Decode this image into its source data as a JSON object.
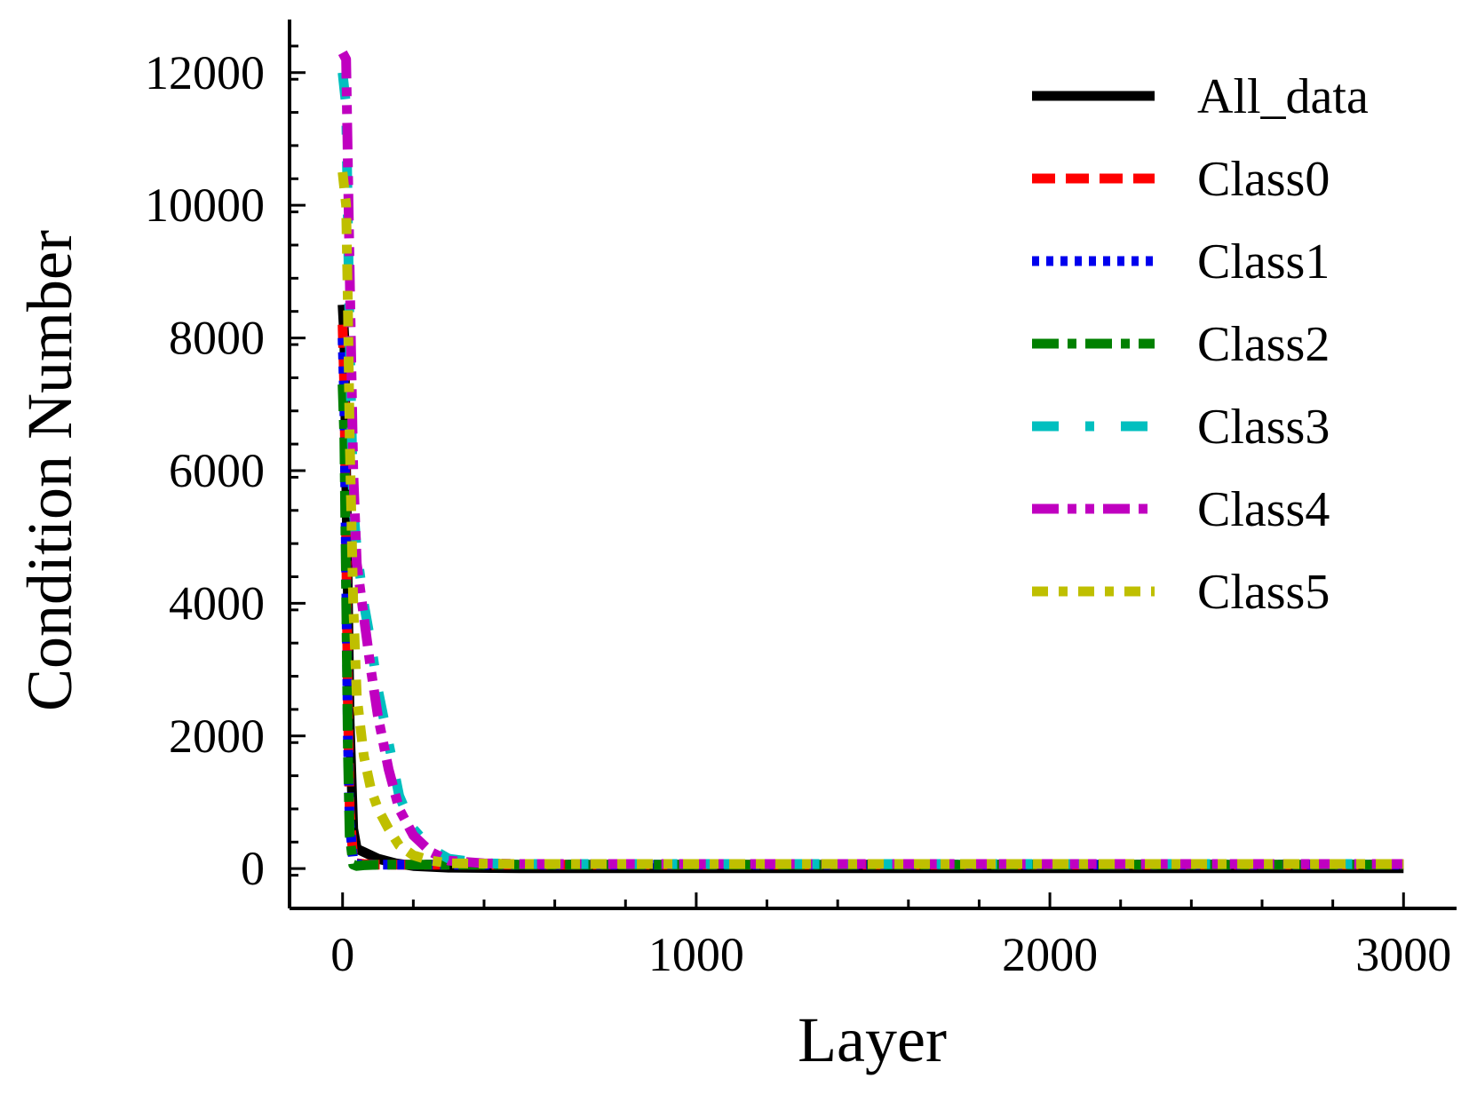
{
  "chart_data": {
    "type": "line",
    "title": "",
    "xlabel": "Layer",
    "ylabel": "Condition Number",
    "xlim": [
      -150,
      3150
    ],
    "ylim": [
      -600,
      12800
    ],
    "xticks": [
      0,
      1000,
      2000,
      3000
    ],
    "xtick_labels": [
      "0",
      "1000",
      "2000",
      "3000"
    ],
    "yticks": [
      0,
      2000,
      4000,
      6000,
      8000,
      10000,
      12000
    ],
    "ytick_labels": [
      "0",
      "2000",
      "4000",
      "6000",
      "8000",
      "10000",
      "12000"
    ],
    "grid": false,
    "legend_position": "top-right",
    "series": [
      {
        "name": "All_data",
        "color": "#000000",
        "dash": "solid",
        "x": [
          0,
          5,
          10,
          20,
          30,
          40,
          60,
          80,
          100,
          150,
          200,
          300,
          500,
          1000,
          2000,
          3000
        ],
        "y": [
          8500,
          8000,
          6000,
          2200,
          600,
          300,
          250,
          200,
          150,
          80,
          40,
          15,
          5,
          5,
          5,
          5
        ]
      },
      {
        "name": "Class0",
        "color": "#ff0000",
        "dash": "dash",
        "x": [
          0,
          5,
          10,
          15,
          20,
          30,
          40,
          60,
          100,
          200,
          300,
          500,
          1000,
          2000,
          3000
        ],
        "y": [
          8200,
          7200,
          5000,
          2500,
          900,
          150,
          80,
          70,
          60,
          60,
          60,
          60,
          60,
          60,
          60
        ]
      },
      {
        "name": "Class1",
        "color": "#0000ee",
        "dash": "dot",
        "x": [
          0,
          5,
          10,
          15,
          20,
          30,
          40,
          60,
          100,
          200,
          300,
          500,
          1000,
          2000,
          3000
        ],
        "y": [
          8000,
          7000,
          4500,
          2000,
          700,
          120,
          70,
          60,
          60,
          60,
          60,
          60,
          60,
          60,
          60
        ]
      },
      {
        "name": "Class2",
        "color": "#008000",
        "dash": "dashdot",
        "x": [
          0,
          5,
          10,
          15,
          20,
          30,
          40,
          60,
          100,
          200,
          300,
          500,
          1000,
          2000,
          3000
        ],
        "y": [
          7300,
          6500,
          4200,
          1800,
          500,
          60,
          40,
          50,
          60,
          60,
          60,
          60,
          60,
          60,
          60
        ]
      },
      {
        "name": "Class3",
        "color": "#00bfbf",
        "dash": "dashdotspace",
        "x": [
          0,
          10,
          20,
          30,
          40,
          60,
          80,
          100,
          130,
          160,
          200,
          250,
          300,
          400,
          500,
          1000,
          2000,
          3000
        ],
        "y": [
          12000,
          11500,
          8000,
          5500,
          4800,
          4000,
          3400,
          2700,
          1900,
          1100,
          600,
          300,
          150,
          80,
          70,
          70,
          70,
          70
        ]
      },
      {
        "name": "Class4",
        "color": "#c000c0",
        "dash": "dashdotdot",
        "x": [
          0,
          10,
          20,
          30,
          40,
          60,
          80,
          100,
          130,
          160,
          200,
          250,
          300,
          400,
          500,
          1000,
          2000,
          3000
        ],
        "y": [
          12300,
          12200,
          9000,
          6000,
          4600,
          3800,
          3000,
          2300,
          1500,
          900,
          500,
          250,
          120,
          80,
          70,
          70,
          70,
          70
        ]
      },
      {
        "name": "Class5",
        "color": "#bfbf00",
        "dash": "shortdash",
        "x": [
          0,
          10,
          15,
          20,
          30,
          40,
          60,
          80,
          100,
          130,
          160,
          200,
          250,
          300,
          500,
          1000,
          2000,
          3000
        ],
        "y": [
          10500,
          10000,
          8500,
          6500,
          4000,
          2600,
          1700,
          1200,
          900,
          600,
          350,
          200,
          120,
          80,
          70,
          70,
          70,
          70
        ]
      }
    ]
  }
}
